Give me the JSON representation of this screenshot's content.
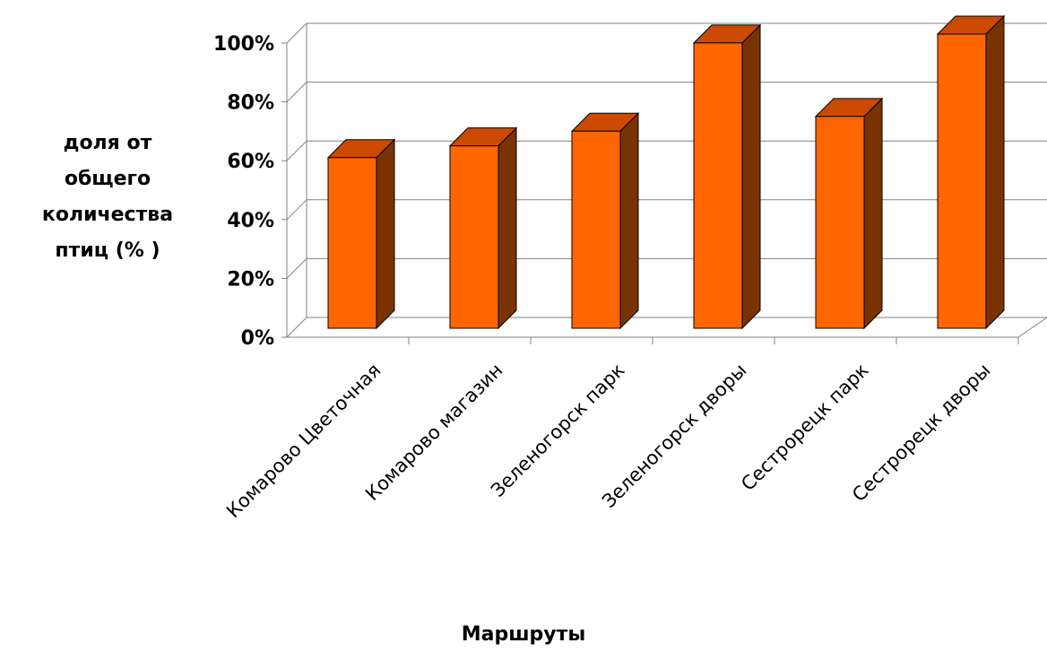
{
  "chart_data": {
    "type": "bar",
    "title": "",
    "xlabel": "Маршруты",
    "ylabel_lines": [
      "доля от",
      "общего",
      "количества",
      "птиц (% )"
    ],
    "categories": [
      "Комарово Цветочная",
      "Комарово магазин",
      "Зеленогорск парк",
      "Зеленогорск дворы",
      "Сестрорецк парк",
      "Сестрорецк дворы"
    ],
    "values": [
      58,
      62,
      67,
      97,
      72,
      100
    ],
    "ylim": [
      0,
      100
    ],
    "yticks": [
      "0%",
      "20%",
      "40%",
      "60%",
      "80%",
      "100%"
    ],
    "grid": true,
    "legend": "none",
    "colors": {
      "front": "#ff6600",
      "top": "#cc4a00",
      "side": "#7a3300",
      "grid": "#808080"
    }
  }
}
